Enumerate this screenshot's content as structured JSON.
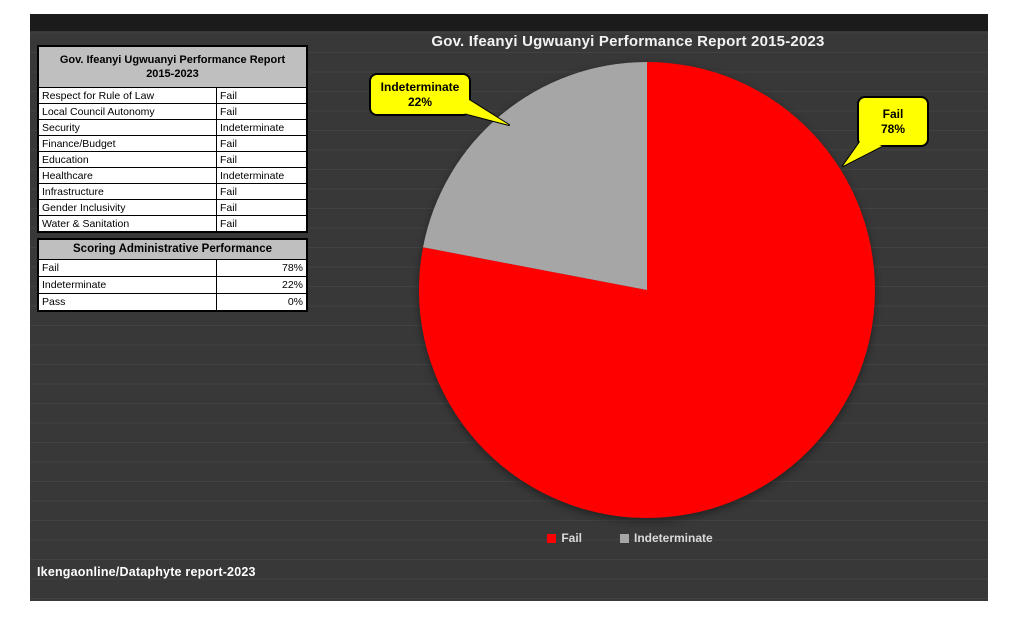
{
  "report_table": {
    "title": "Gov. Ifeanyi Ugwuanyi Performance Report 2015-2023",
    "title_line1": "Gov. Ifeanyi Ugwuanyi Performance Report",
    "title_line2": "2015-2023",
    "rows": [
      {
        "metric": "Respect for Rule of Law",
        "rating": "Fail"
      },
      {
        "metric": "Local Council Autonomy",
        "rating": "Fail"
      },
      {
        "metric": "Security",
        "rating": "Indeterminate"
      },
      {
        "metric": "Finance/Budget",
        "rating": "Fail"
      },
      {
        "metric": "Education",
        "rating": "Fail"
      },
      {
        "metric": "Healthcare",
        "rating": "Indeterminate"
      },
      {
        "metric": "Infrastructure",
        "rating": "Fail"
      },
      {
        "metric": "Gender Inclusivity",
        "rating": "Fail"
      },
      {
        "metric": "Water & Sanitation",
        "rating": "Fail"
      }
    ]
  },
  "scoring_table": {
    "title": "Scoring Administrative Performance",
    "rows": [
      {
        "label": "Fail",
        "value": "78%"
      },
      {
        "label": "Indeterminate",
        "value": "22%"
      },
      {
        "label": "Pass",
        "value": "0%"
      }
    ]
  },
  "chart_data": {
    "type": "pie",
    "title": "Gov. Ifeanyi Ugwuanyi Performance Report 2015-2023",
    "slices": [
      {
        "label": "Fail",
        "value": 78,
        "color": "#ff0000"
      },
      {
        "label": "Indeterminate",
        "value": 22,
        "color": "#a6a6a6"
      }
    ],
    "start_angle_deg": 0,
    "direction": "clockwise",
    "legend_position": "bottom",
    "callouts": [
      {
        "label": "Indeterminate",
        "value": "22%"
      },
      {
        "label": "Fail",
        "value": "78%"
      }
    ]
  },
  "footer": {
    "source": "Ikengaonline/Dataphyte report-2023"
  },
  "colors": {
    "canvas_bg": "#383838",
    "top_bar": "#1b1b1b",
    "table_header_bg": "#bfbfbf",
    "callout_bg": "#ffff00",
    "fail_red": "#ff0000",
    "indeterminate_gray": "#a6a6a6",
    "legend_text": "#d9d9d9"
  }
}
